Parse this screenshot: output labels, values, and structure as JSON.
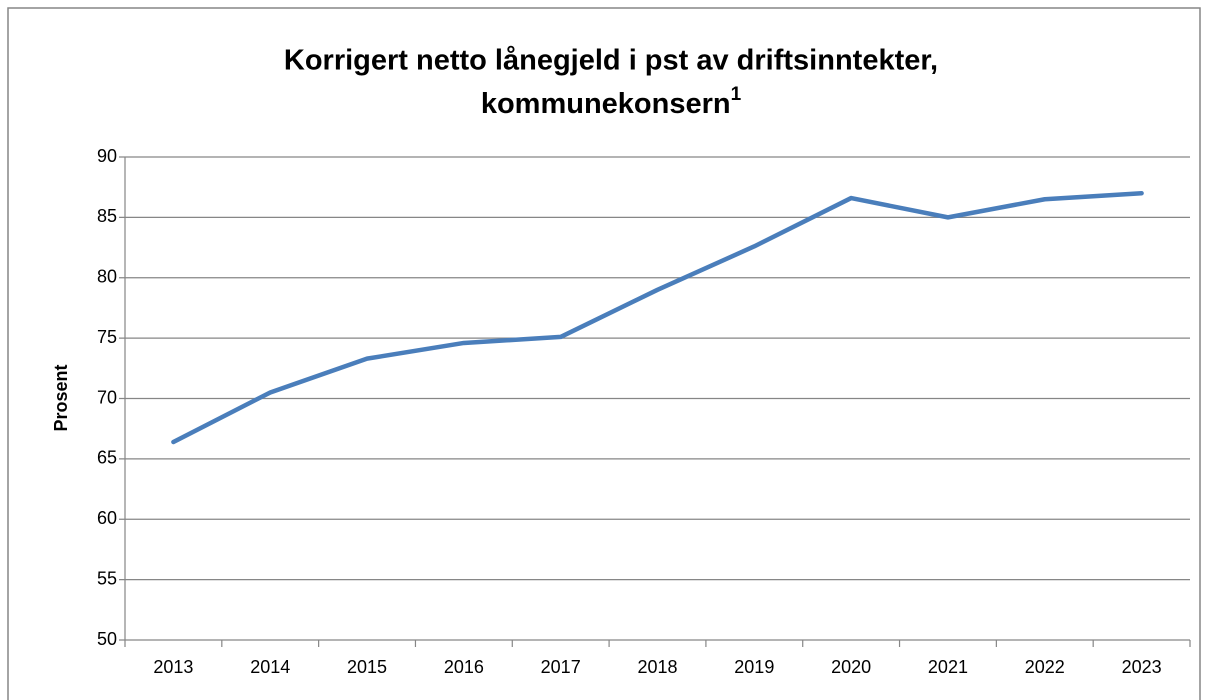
{
  "chart_data": {
    "type": "line",
    "title": [
      "Korrigert netto lånegjeld i pst av driftsinntekter,",
      "kommunekonsern"
    ],
    "title_note": "1",
    "y_label": "Prosent",
    "categories": [
      "2013",
      "2014",
      "2015",
      "2016",
      "2017",
      "2018",
      "2019",
      "2020",
      "2021",
      "2022",
      "2023"
    ],
    "series": [
      {
        "name": "Korrigert netto lånegjeld",
        "color": "#4a7ebb",
        "values": [
          66.4,
          70.5,
          73.3,
          74.6,
          75.1,
          79.0,
          82.6,
          86.6,
          85.0,
          86.5,
          87.0
        ]
      }
    ],
    "ylim": [
      50,
      90
    ],
    "yticks": [
      50,
      55,
      60,
      65,
      70,
      75,
      80,
      85,
      90
    ],
    "grid": true
  }
}
